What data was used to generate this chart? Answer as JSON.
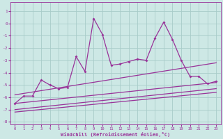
{
  "xlabel": "Windchill (Refroidissement éolien,°C)",
  "ylabel": "",
  "xlim": [
    -0.5,
    23.5
  ],
  "ylim": [
    -8.2,
    1.7
  ],
  "yticks": [
    1,
    0,
    -1,
    -2,
    -3,
    -4,
    -5,
    -6,
    -7,
    -8
  ],
  "xticks": [
    0,
    1,
    2,
    3,
    4,
    5,
    6,
    7,
    8,
    9,
    10,
    11,
    12,
    13,
    14,
    15,
    16,
    17,
    18,
    19,
    20,
    21,
    22,
    23
  ],
  "bg_color": "#cde8e5",
  "grid_color": "#a8ccc9",
  "line_color": "#993399",
  "main_line": {
    "x": [
      0,
      1,
      2,
      3,
      4,
      5,
      6,
      7,
      8,
      9,
      10,
      11,
      12,
      13,
      14,
      15,
      16,
      17,
      18,
      19,
      20,
      21,
      22,
      23
    ],
    "y": [
      -6.5,
      -5.9,
      -5.9,
      -4.6,
      -5.0,
      -5.3,
      -5.2,
      -2.7,
      -3.9,
      0.4,
      -0.9,
      -3.4,
      -3.3,
      -3.1,
      -2.9,
      -3.0,
      -1.2,
      0.1,
      -1.3,
      -3.0,
      -4.3,
      -4.3,
      -4.9,
      -4.7
    ]
  },
  "trend_lines": [
    {
      "x0": 0,
      "y0": -5.8,
      "x1": 23,
      "y1": -3.2
    },
    {
      "x0": 0,
      "y0": -6.5,
      "x1": 23,
      "y1": -4.8
    },
    {
      "x0": 0,
      "y0": -7.0,
      "x1": 23,
      "y1": -5.3
    },
    {
      "x0": 0,
      "y0": -7.2,
      "x1": 23,
      "y1": -5.6
    }
  ]
}
